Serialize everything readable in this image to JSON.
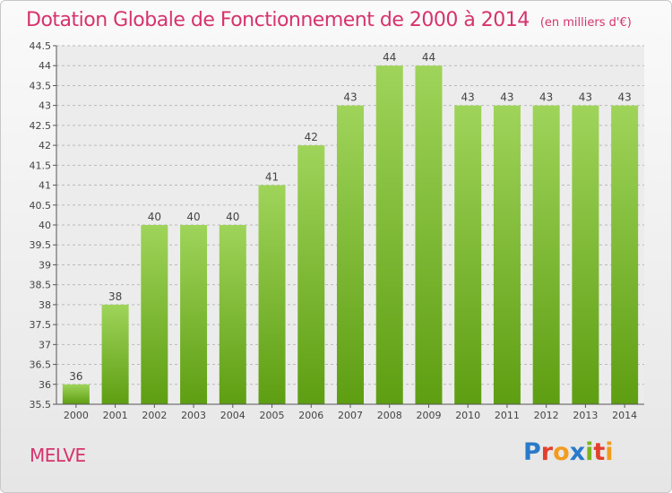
{
  "title": "Dotation Globale de Fonctionnement de 2000 à 2014",
  "unit": "(en milliers d'€)",
  "commune": "MELVE",
  "logo": "Proxiti",
  "colors": {
    "bar_top": "#9fd45a",
    "bar_bottom": "#5e9e12",
    "title": "#d6336c"
  },
  "chart_data": {
    "type": "bar",
    "title": "Dotation Globale de Fonctionnement de 2000 à 2014",
    "subtitle": "(en milliers d'€)",
    "categories": [
      "2000",
      "2001",
      "2002",
      "2003",
      "2004",
      "2005",
      "2006",
      "2007",
      "2008",
      "2009",
      "2010",
      "2011",
      "2012",
      "2013",
      "2014"
    ],
    "values": [
      36,
      38,
      40,
      40,
      40,
      41,
      42,
      43,
      44,
      44,
      43,
      43,
      43,
      43,
      43
    ],
    "labels": [
      "36",
      "38",
      "40",
      "40",
      "40",
      "41",
      "42",
      "43",
      "44",
      "44",
      "43",
      "43",
      "43",
      "43",
      "43"
    ],
    "ylim": [
      35.5,
      44.5
    ],
    "yticks": [
      "35.5",
      "36",
      "36.5",
      "37",
      "37.5",
      "38",
      "38.5",
      "39",
      "39.5",
      "40",
      "40.5",
      "41",
      "41.5",
      "42",
      "42.5",
      "43",
      "43.5",
      "44",
      "44.5"
    ],
    "grid": true,
    "legend": "none"
  }
}
